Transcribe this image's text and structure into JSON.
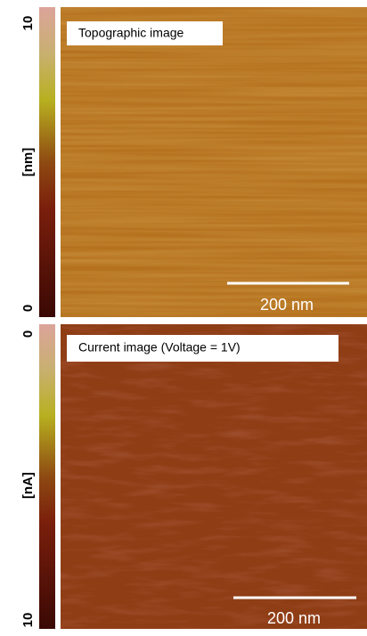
{
  "panels": [
    {
      "label": "Topographic image",
      "colorbar_top": "10",
      "colorbar_bottom": "0",
      "unit": "[nm]",
      "scale_bar": "200 nm"
    },
    {
      "label": "Current image (Voltage = 1V)",
      "colorbar_top": "0",
      "colorbar_bottom": "10",
      "unit": "[nA]",
      "scale_bar": "200 nm"
    }
  ]
}
